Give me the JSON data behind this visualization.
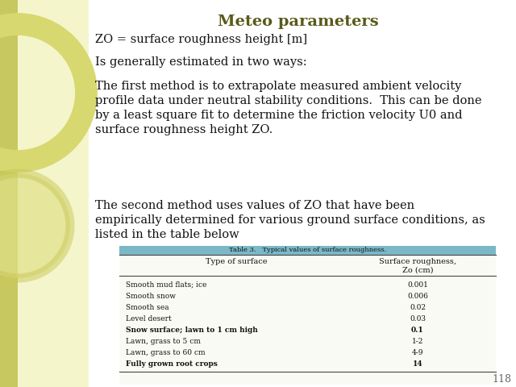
{
  "title": "Meteo parameters",
  "title_color": "#5a5a1a",
  "title_fontsize": 14,
  "background_color": "#f5f5cc",
  "left_bar_color": "#d0d080",
  "slide_bg": "#ffffff",
  "bullet_points": [
    "ZO = surface roughness height [m]",
    "Is generally estimated in two ways:",
    "The first method is to extrapolate measured ambient velocity\nprofile data under neutral stability conditions.  This can be done\nby a least square fit to determine the friction velocity U0 and\nsurface roughness height ZO.",
    "The second method uses values of ZO that have been\nempirically determined for various ground surface conditions, as\nlisted in the table below"
  ],
  "table_title": "Table 3.   Typical values of surface roughness.",
  "table_header_col1": "Type of surface",
  "table_header_col2": "Surface roughness,\nZo (cm)",
  "table_rows": [
    [
      "Smooth mud flats; ice",
      "0.001"
    ],
    [
      "Smooth snow",
      "0.006"
    ],
    [
      "Smooth sea",
      "0.02"
    ],
    [
      "Level desert",
      "0.03"
    ],
    [
      "Snow surface; lawn to 1 cm high",
      "0.1"
    ],
    [
      "Lawn, grass to 5 cm",
      "1-2"
    ],
    [
      "Lawn, grass to 60 cm",
      "4-9"
    ],
    [
      "Fully grown root crops",
      "14"
    ]
  ],
  "page_number": "118",
  "text_fontsize": 10.5,
  "table_fontsize": 7.0,
  "font_family": "DejaVu Serif",
  "teal_color": "#7ab8c8",
  "circle_color": "#e8e8a0",
  "circle_outline_color": "#d8d890"
}
